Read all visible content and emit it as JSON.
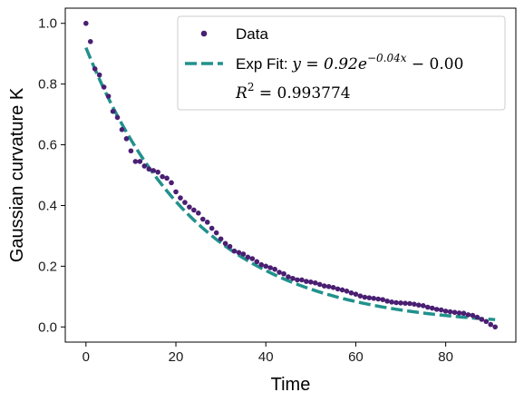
{
  "colors": {
    "data_points": "#4a1f73",
    "fit_line": "#21918c",
    "axes": "#000000",
    "legend_border": "#cccccc",
    "background": "#ffffff"
  },
  "chart_data": {
    "type": "scatter",
    "xlabel": "Time",
    "ylabel": "Gaussian curvature  K",
    "title": "",
    "xlim": [
      -4.6,
      95.6
    ],
    "ylim": [
      -0.05,
      1.05
    ],
    "xticks": [
      "0",
      "20",
      "40",
      "60",
      "80"
    ],
    "yticks": [
      "0.0",
      "0.2",
      "0.4",
      "0.6",
      "0.8",
      "1.0"
    ],
    "grid": false,
    "legend_position": "top-right",
    "legend": [
      {
        "label": "Data",
        "kind": "marker"
      },
      {
        "label_prefix": "Exp Fit: ",
        "label_math": "y = 0.92e",
        "label_sup": "−0.04x",
        "label_suffix": " − 0.00",
        "kind": "dashed-line"
      },
      {
        "label_math": "R",
        "label_sup": "2",
        "label_suffix": " = 0.993774",
        "kind": "none"
      }
    ],
    "series": [
      {
        "name": "Data",
        "kind": "scatter",
        "x": [
          0,
          1,
          2,
          3,
          4,
          5,
          6,
          7,
          8,
          9,
          10,
          11,
          12,
          13,
          14,
          15,
          16,
          17,
          18,
          19,
          20,
          21,
          22,
          23,
          24,
          25,
          26,
          27,
          28,
          29,
          30,
          31,
          32,
          33,
          34,
          35,
          36,
          37,
          38,
          39,
          40,
          41,
          42,
          43,
          44,
          45,
          46,
          47,
          48,
          49,
          50,
          51,
          52,
          53,
          54,
          55,
          56,
          57,
          58,
          59,
          60,
          61,
          62,
          63,
          64,
          65,
          66,
          67,
          68,
          69,
          70,
          71,
          72,
          73,
          74,
          75,
          76,
          77,
          78,
          79,
          80,
          81,
          82,
          83,
          84,
          85,
          86,
          87,
          88,
          89,
          90,
          91
        ],
        "y": [
          1.0,
          0.94,
          0.85,
          0.83,
          0.79,
          0.76,
          0.71,
          0.69,
          0.65,
          0.62,
          0.58,
          0.545,
          0.545,
          0.53,
          0.52,
          0.515,
          0.51,
          0.495,
          0.49,
          0.475,
          0.445,
          0.425,
          0.41,
          0.395,
          0.385,
          0.375,
          0.355,
          0.345,
          0.325,
          0.31,
          0.29,
          0.275,
          0.265,
          0.25,
          0.245,
          0.24,
          0.23,
          0.225,
          0.215,
          0.205,
          0.2,
          0.195,
          0.19,
          0.18,
          0.175,
          0.165,
          0.16,
          0.155,
          0.155,
          0.15,
          0.148,
          0.145,
          0.14,
          0.135,
          0.133,
          0.13,
          0.125,
          0.122,
          0.118,
          0.112,
          0.108,
          0.102,
          0.098,
          0.096,
          0.094,
          0.092,
          0.09,
          0.085,
          0.082,
          0.08,
          0.079,
          0.078,
          0.077,
          0.075,
          0.072,
          0.07,
          0.065,
          0.062,
          0.058,
          0.056,
          0.052,
          0.05,
          0.048,
          0.046,
          0.045,
          0.04,
          0.038,
          0.032,
          0.025,
          0.018,
          0.008,
          0.0
        ]
      },
      {
        "name": "Exp Fit",
        "kind": "fit",
        "a": 0.92,
        "b": 0.04,
        "c": 0.0,
        "x_range": [
          0,
          91
        ]
      }
    ]
  }
}
